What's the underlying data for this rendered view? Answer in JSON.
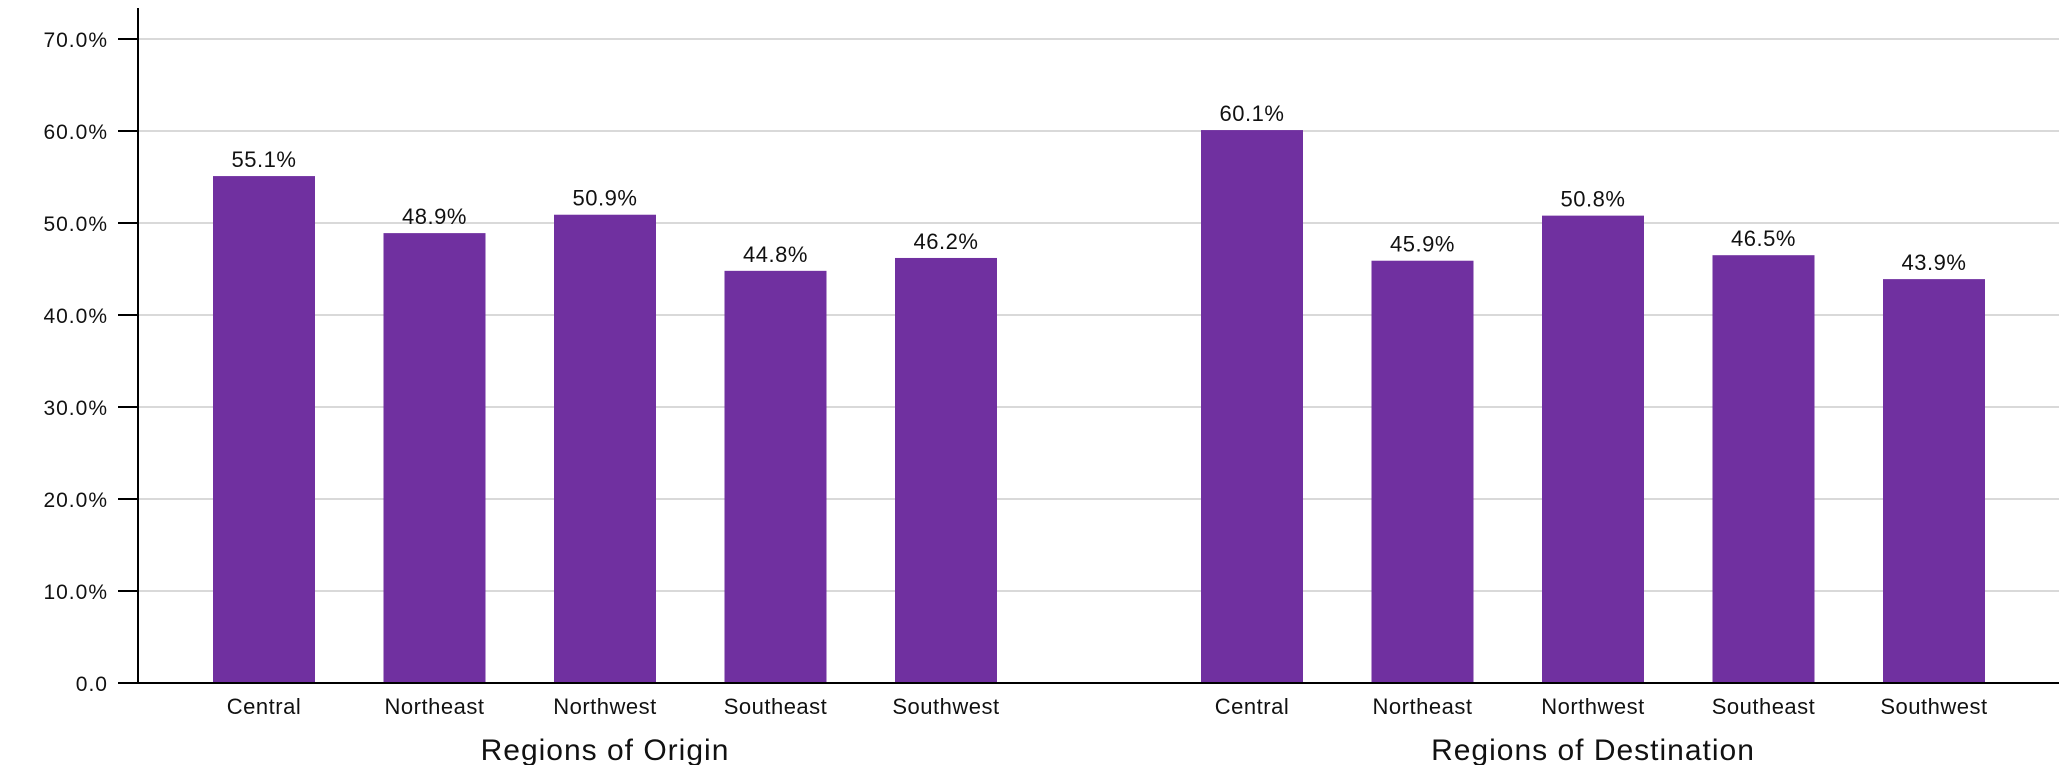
{
  "chart_data": {
    "type": "bar",
    "ylim": [
      0,
      70
    ],
    "y_ticks": [
      "0.0",
      "10.0%",
      "20.0%",
      "30.0%",
      "40.0%",
      "50.0%",
      "60.0%",
      "70.0%"
    ],
    "y_tick_values": [
      0,
      10,
      20,
      30,
      40,
      50,
      60,
      70
    ],
    "grid": true,
    "bar_color": "#7030A0",
    "groups": [
      {
        "title": "Regions of Origin",
        "categories": [
          "Central",
          "Northeast",
          "Northwest",
          "Southeast",
          "Southwest"
        ],
        "values": [
          55.1,
          48.9,
          50.9,
          44.8,
          46.2
        ],
        "labels": [
          "55.1%",
          "48.9%",
          "50.9%",
          "44.8%",
          "46.2%"
        ]
      },
      {
        "title": "Regions of Destination",
        "categories": [
          "Central",
          "Northeast",
          "Northwest",
          "Southeast",
          "Southwest"
        ],
        "values": [
          60.1,
          45.9,
          50.8,
          46.5,
          43.9
        ],
        "labels": [
          "60.1%",
          "45.9%",
          "50.8%",
          "46.5%",
          "43.9%"
        ]
      }
    ]
  }
}
